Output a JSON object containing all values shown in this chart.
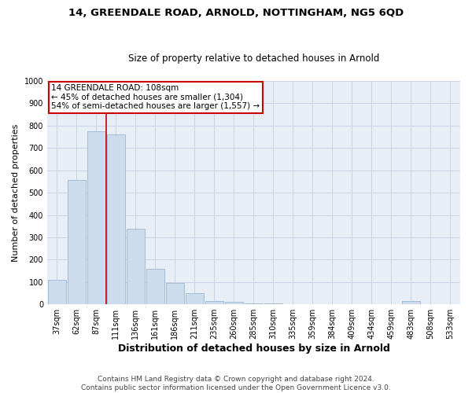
{
  "title1": "14, GREENDALE ROAD, ARNOLD, NOTTINGHAM, NG5 6QD",
  "title2": "Size of property relative to detached houses in Arnold",
  "xlabel": "Distribution of detached houses by size in Arnold",
  "ylabel": "Number of detached properties",
  "categories": [
    "37sqm",
    "62sqm",
    "87sqm",
    "111sqm",
    "136sqm",
    "161sqm",
    "186sqm",
    "211sqm",
    "235sqm",
    "260sqm",
    "285sqm",
    "310sqm",
    "335sqm",
    "359sqm",
    "384sqm",
    "409sqm",
    "434sqm",
    "459sqm",
    "483sqm",
    "508sqm",
    "533sqm"
  ],
  "values": [
    110,
    555,
    775,
    760,
    340,
    160,
    95,
    50,
    15,
    10,
    5,
    3,
    2,
    2,
    1,
    1,
    1,
    1,
    15,
    1,
    0
  ],
  "bar_color": "#ccdcec",
  "bar_edge_color": "#9ab8d0",
  "grid_color": "#c8d4e4",
  "bg_color": "#e8eef6",
  "red_line_index": 3,
  "annotation_text1": "14 GREENDALE ROAD: 108sqm",
  "annotation_text2": "← 45% of detached houses are smaller (1,304)",
  "annotation_text3": "54% of semi-detached houses are larger (1,557) →",
  "annotation_box_facecolor": "#ffffff",
  "annotation_box_edgecolor": "#cc0000",
  "footnote1": "Contains HM Land Registry data © Crown copyright and database right 2024.",
  "footnote2": "Contains public sector information licensed under the Open Government Licence v3.0.",
  "ylim": [
    0,
    1000
  ],
  "yticks": [
    0,
    100,
    200,
    300,
    400,
    500,
    600,
    700,
    800,
    900,
    1000
  ],
  "fig_bg": "#ffffff",
  "title1_fontsize": 9.5,
  "title2_fontsize": 8.5,
  "ylabel_fontsize": 8,
  "xlabel_fontsize": 9,
  "tick_fontsize": 7,
  "footnote_fontsize": 6.5
}
